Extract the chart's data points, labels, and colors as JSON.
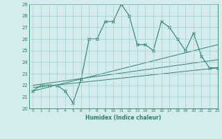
{
  "xlabel": "Humidex (Indice chaleur)",
  "x": [
    0,
    1,
    2,
    3,
    4,
    5,
    6,
    7,
    8,
    9,
    10,
    11,
    12,
    13,
    14,
    15,
    16,
    17,
    18,
    19,
    20,
    21,
    22,
    23
  ],
  "y_main": [
    21.5,
    22,
    22,
    22,
    21.5,
    20.5,
    22.5,
    26,
    26,
    27.5,
    27.5,
    29,
    28,
    25.5,
    25.5,
    25,
    27.5,
    27,
    26,
    25,
    26.5,
    24.5,
    23.5,
    23.5
  ],
  "trend1_x": [
    0,
    23
  ],
  "trend1_y": [
    21.5,
    25.5
  ],
  "trend2_x": [
    0,
    23
  ],
  "trend2_y": [
    22.0,
    24.2
  ],
  "trend3_x": [
    0,
    23
  ],
  "trend3_y": [
    21.8,
    23.5
  ],
  "color": "#2d7d6e",
  "bg_color": "#d4eced",
  "grid_color": "#a0cdd0",
  "ylim": [
    20,
    29
  ],
  "xlim": [
    -0.5,
    23
  ],
  "yticks": [
    20,
    21,
    22,
    23,
    24,
    25,
    26,
    27,
    28,
    29
  ],
  "xticks": [
    0,
    1,
    2,
    3,
    4,
    5,
    6,
    7,
    8,
    9,
    10,
    11,
    12,
    13,
    14,
    15,
    16,
    17,
    18,
    19,
    20,
    21,
    22,
    23
  ]
}
